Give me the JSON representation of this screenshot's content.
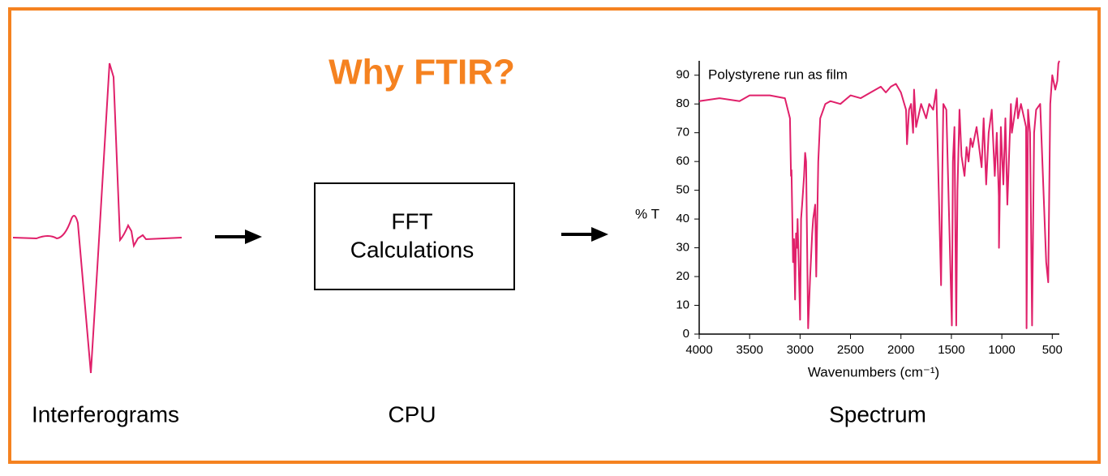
{
  "title": "Why FTIR?",
  "labels": {
    "interferograms": "Interferograms",
    "cpu": "CPU",
    "spectrum": "Spectrum"
  },
  "box": {
    "lines": [
      "FFT",
      "Calculations"
    ]
  },
  "chart_data": {
    "type": "line",
    "annotation": "Polystyrene run as film",
    "y_label": "% T",
    "x_label": "Wavenumbers (cm⁻¹)",
    "color": "#e0206a",
    "grid": false,
    "xlim": [
      4000,
      430
    ],
    "ylim": [
      0,
      95
    ],
    "xticks": [
      4000,
      3500,
      3000,
      2500,
      2000,
      1500,
      1000,
      500
    ],
    "yticks": [
      0,
      10,
      20,
      30,
      40,
      50,
      60,
      70,
      80,
      90
    ],
    "x": [
      4000,
      3800,
      3600,
      3500,
      3300,
      3150,
      3100,
      3090,
      3085,
      3070,
      3060,
      3050,
      3040,
      3030,
      3025,
      3000,
      2990,
      2980,
      2960,
      2950,
      2940,
      2920,
      2900,
      2880,
      2870,
      2850,
      2840,
      2820,
      2800,
      2750,
      2700,
      2600,
      2500,
      2400,
      2300,
      2200,
      2150,
      2100,
      2050,
      2000,
      1950,
      1940,
      1920,
      1900,
      1880,
      1870,
      1850,
      1800,
      1750,
      1720,
      1680,
      1650,
      1602,
      1590,
      1580,
      1550,
      1495,
      1485,
      1470,
      1452,
      1440,
      1420,
      1400,
      1370,
      1350,
      1330,
      1310,
      1290,
      1250,
      1200,
      1180,
      1155,
      1130,
      1100,
      1070,
      1050,
      1030,
      1028,
      1010,
      985,
      965,
      945,
      910,
      900,
      850,
      840,
      810,
      760,
      755,
      740,
      720,
      700,
      680,
      660,
      620,
      560,
      540,
      520,
      500,
      470,
      450,
      440,
      430
    ],
    "values": [
      81,
      82,
      81,
      83,
      83,
      82,
      75,
      55,
      57,
      25,
      33,
      12,
      35,
      30,
      40,
      5,
      40,
      45,
      55,
      63,
      60,
      2,
      20,
      35,
      40,
      45,
      20,
      60,
      75,
      80,
      81,
      80,
      83,
      82,
      84,
      86,
      84,
      86,
      87,
      84,
      78,
      66,
      78,
      80,
      70,
      85,
      72,
      80,
      75,
      80,
      78,
      85,
      17,
      55,
      80,
      78,
      3,
      60,
      72,
      3,
      50,
      78,
      62,
      55,
      65,
      60,
      68,
      65,
      72,
      58,
      75,
      52,
      70,
      78,
      55,
      70,
      48,
      30,
      72,
      52,
      75,
      45,
      80,
      70,
      82,
      75,
      80,
      72,
      2,
      78,
      70,
      3,
      70,
      78,
      80,
      25,
      18,
      80,
      90,
      85,
      88,
      94,
      95
    ]
  }
}
